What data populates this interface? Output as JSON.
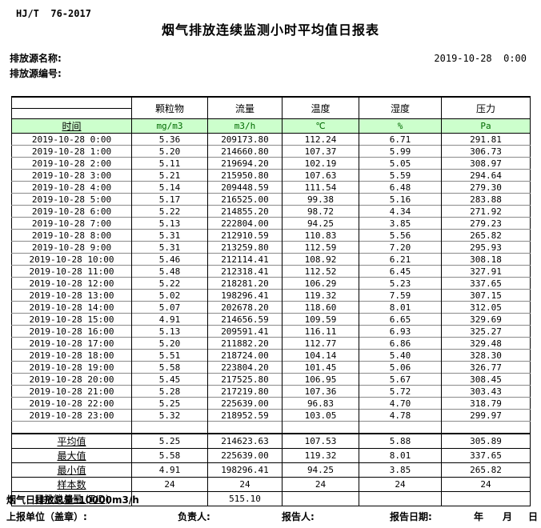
{
  "doc": {
    "standard": "HJ/T  76-2017",
    "title": "烟气排放连续监测小时平均值日报表",
    "source_name_label": "排放源名称:",
    "source_code_label": "排放源编号:",
    "datetime": "2019-10-28  0:00"
  },
  "table": {
    "time_header": "时间",
    "columns": [
      {
        "label": "颗粒物",
        "unit": "mg/m3"
      },
      {
        "label": "流量",
        "unit": "m3/h"
      },
      {
        "label": "温度",
        "unit": "℃"
      },
      {
        "label": "湿度",
        "unit": "%"
      },
      {
        "label": "压力",
        "unit": "Pa"
      }
    ],
    "rows": [
      [
        "2019-10-28 0:00",
        "5.36",
        "209173.80",
        "112.24",
        "6.71",
        "291.81"
      ],
      [
        "2019-10-28 1:00",
        "5.20",
        "214660.80",
        "107.37",
        "5.99",
        "306.73"
      ],
      [
        "2019-10-28 2:00",
        "5.11",
        "219694.20",
        "102.19",
        "5.05",
        "308.97"
      ],
      [
        "2019-10-28 3:00",
        "5.21",
        "215950.80",
        "107.63",
        "5.59",
        "294.64"
      ],
      [
        "2019-10-28 4:00",
        "5.14",
        "209448.59",
        "111.54",
        "6.48",
        "279.30"
      ],
      [
        "2019-10-28 5:00",
        "5.17",
        "216525.00",
        "99.38",
        "5.16",
        "283.88"
      ],
      [
        "2019-10-28 6:00",
        "5.22",
        "214855.20",
        "98.72",
        "4.34",
        "271.92"
      ],
      [
        "2019-10-28 7:00",
        "5.13",
        "222804.00",
        "94.25",
        "3.85",
        "279.23"
      ],
      [
        "2019-10-28 8:00",
        "5.31",
        "212910.59",
        "110.83",
        "5.56",
        "265.82"
      ],
      [
        "2019-10-28 9:00",
        "5.31",
        "213259.80",
        "112.59",
        "7.20",
        "295.93"
      ],
      [
        "2019-10-28 10:00",
        "5.46",
        "212114.41",
        "108.92",
        "6.21",
        "308.18"
      ],
      [
        "2019-10-28 11:00",
        "5.48",
        "212318.41",
        "112.52",
        "6.45",
        "327.91"
      ],
      [
        "2019-10-28 12:00",
        "5.22",
        "218281.20",
        "106.29",
        "5.23",
        "337.65"
      ],
      [
        "2019-10-28 13:00",
        "5.02",
        "198296.41",
        "119.32",
        "7.59",
        "307.15"
      ],
      [
        "2019-10-28 14:00",
        "5.07",
        "202678.20",
        "118.60",
        "8.01",
        "312.05"
      ],
      [
        "2019-10-28 15:00",
        "4.91",
        "214656.59",
        "109.59",
        "6.65",
        "329.69"
      ],
      [
        "2019-10-28 16:00",
        "5.13",
        "209591.41",
        "116.11",
        "6.93",
        "325.27"
      ],
      [
        "2019-10-28 17:00",
        "5.20",
        "211882.20",
        "112.77",
        "6.86",
        "329.48"
      ],
      [
        "2019-10-28 18:00",
        "5.51",
        "218724.00",
        "104.14",
        "5.40",
        "328.30"
      ],
      [
        "2019-10-28 19:00",
        "5.58",
        "223804.20",
        "101.45",
        "5.06",
        "326.77"
      ],
      [
        "2019-10-28 20:00",
        "5.45",
        "217525.80",
        "106.95",
        "5.67",
        "308.45"
      ],
      [
        "2019-10-28 21:00",
        "5.28",
        "217219.80",
        "107.36",
        "5.72",
        "303.43"
      ],
      [
        "2019-10-28 22:00",
        "5.25",
        "225639.00",
        "96.83",
        "4.70",
        "318.79"
      ],
      [
        "2019-10-28 23:00",
        "5.32",
        "218952.59",
        "103.05",
        "4.78",
        "299.97"
      ]
    ],
    "summary": [
      {
        "label": "平均值",
        "values": [
          "5.25",
          "214623.63",
          "107.53",
          "5.88",
          "305.89"
        ]
      },
      {
        "label": "最大值",
        "values": [
          "5.58",
          "225639.00",
          "119.32",
          "8.01",
          "337.65"
        ]
      },
      {
        "label": "最小值",
        "values": [
          "4.91",
          "198296.41",
          "94.25",
          "3.85",
          "265.82"
        ]
      },
      {
        "label": "样本数",
        "values": [
          "24",
          "24",
          "24",
          "24",
          "24"
        ]
      },
      {
        "label": "日排放总量 (T/D)",
        "values": [
          "",
          "515.10",
          "",
          "",
          ""
        ]
      }
    ]
  },
  "footer": {
    "note": "烟气日排放总量*10000m3/h",
    "unit_label": "上报单位（盖章）:",
    "responsible_label": "负责人:",
    "reporter_label": "报告人:",
    "report_date_label": "报告日期:",
    "year_label": "年",
    "month_label": "月",
    "day_label": "日"
  },
  "colors": {
    "header_row_green": "#ccffcc",
    "unit_text_green": "#006a00"
  }
}
